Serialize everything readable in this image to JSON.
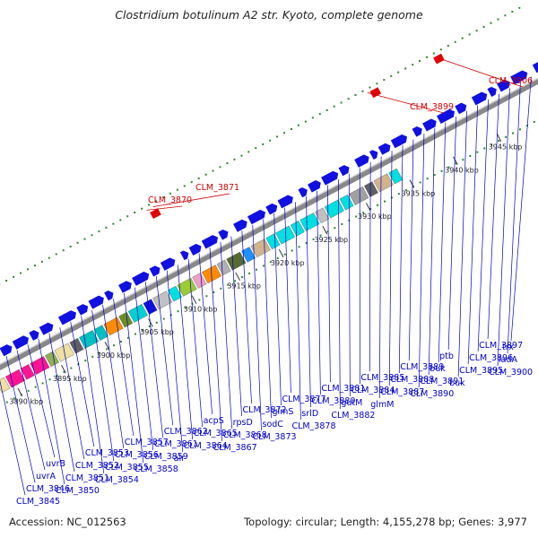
{
  "title": "Clostridium botulinum A2 str. Kyoto, complete genome",
  "footer": {
    "accession": "Accession: NC_012563",
    "summary": "Topology: circular; Length: 4,155,278 bp; Genes: 3,977"
  },
  "colors": {
    "forward_cds": "#1010e0",
    "rna_feature": "#e00000",
    "rna_label": "#d00000",
    "gene_label": "#0000c8",
    "backbone": "#888888",
    "tick": "#2a8a2a"
  },
  "kbp_ticks": [
    "3890 kbp",
    "3895 kbp",
    "3900 kbp",
    "3905 kbp",
    "3910 kbp",
    "3915 kbp",
    "3920 kbp",
    "3925 kbp",
    "3930 kbp",
    "3935 kbp",
    "3940 kbp",
    "3945 kbp"
  ],
  "rna_labels": [
    "CLM_3870",
    "CLM_3871",
    "CLM_3899",
    "CLM_3906"
  ],
  "gene_labels": [
    "CLM_3845",
    "CLM_3846",
    "uvrA",
    "uvrB",
    "CLM_3850",
    "CLM_3851",
    "CLM_3852",
    "CLM_3853",
    "CLM_3854",
    "CLM_3855",
    "CLM_3856",
    "CLM_3857",
    "CLM_3858",
    "CLM_3859",
    "CLM_3861",
    "CLM_3862",
    "alr",
    "CLM_3864",
    "CLM_3865",
    "acpS",
    "CLM_3867",
    "CLM_3868",
    "rpsD",
    "CLM_3872",
    "CLM_3873",
    "sodC",
    "glmS",
    "CLM_3877",
    "CLM_3878",
    "srlD",
    "CLM_3880",
    "CLM_3881",
    "CLM_3882",
    "gutM",
    "CLM_3884",
    "CLM_3885",
    "glmM",
    "CLM_3887",
    "CLM_3888",
    "CLM_3889",
    "CLM_3890",
    "CLM_3891",
    "buk",
    "ptb",
    "buk",
    "CLM_3895",
    "CLM_3896",
    "CLM_3897",
    "CLM_3900",
    "ladA",
    "trx"
  ]
}
